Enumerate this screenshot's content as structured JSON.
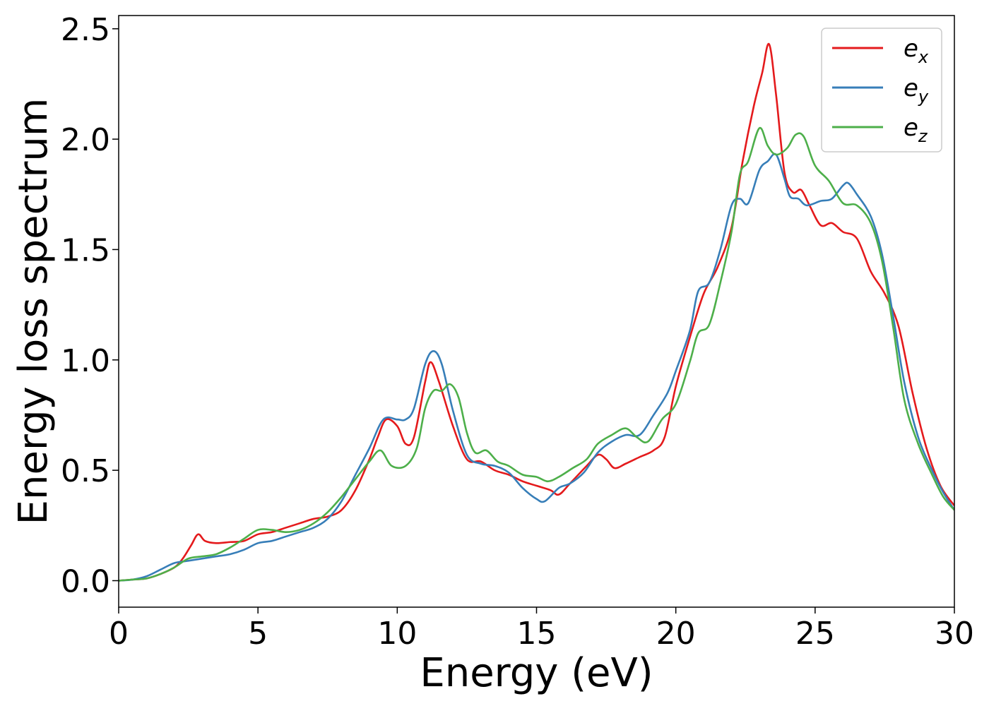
{
  "chart_data": {
    "type": "line",
    "title": "",
    "xlabel": "Energy (eV)",
    "ylabel": "Energy loss spectrum",
    "xlim": [
      0,
      30
    ],
    "ylim": [
      -0.12,
      2.56
    ],
    "xticks": [
      0,
      5,
      10,
      15,
      20,
      25,
      30
    ],
    "yticks": [
      0.0,
      0.5,
      1.0,
      1.5,
      2.0,
      2.5
    ],
    "xtick_labels": [
      "0",
      "5",
      "10",
      "15",
      "20",
      "25",
      "30"
    ],
    "ytick_labels": [
      "0.0",
      "0.5",
      "1.0",
      "1.5",
      "2.0",
      "2.5"
    ],
    "grid": false,
    "legend_position": "top-right",
    "series": [
      {
        "name": "e",
        "subscript": "x",
        "color": "#e41a1c",
        "points": [
          [
            0,
            0
          ],
          [
            0.5,
            0.005
          ],
          [
            1,
            0.01
          ],
          [
            1.5,
            0.03
          ],
          [
            2,
            0.06
          ],
          [
            2.3,
            0.1
          ],
          [
            2.6,
            0.16
          ],
          [
            2.85,
            0.21
          ],
          [
            3.1,
            0.18
          ],
          [
            3.5,
            0.17
          ],
          [
            4,
            0.175
          ],
          [
            4.5,
            0.18
          ],
          [
            5,
            0.21
          ],
          [
            5.5,
            0.22
          ],
          [
            6,
            0.24
          ],
          [
            6.5,
            0.26
          ],
          [
            7,
            0.28
          ],
          [
            7.5,
            0.29
          ],
          [
            8,
            0.32
          ],
          [
            8.5,
            0.41
          ],
          [
            9,
            0.55
          ],
          [
            9.3,
            0.65
          ],
          [
            9.6,
            0.73
          ],
          [
            10,
            0.7
          ],
          [
            10.3,
            0.62
          ],
          [
            10.6,
            0.65
          ],
          [
            11,
            0.9
          ],
          [
            11.2,
            0.99
          ],
          [
            11.5,
            0.9
          ],
          [
            12,
            0.7
          ],
          [
            12.5,
            0.55
          ],
          [
            13,
            0.54
          ],
          [
            13.5,
            0.5
          ],
          [
            14,
            0.48
          ],
          [
            14.5,
            0.45
          ],
          [
            15,
            0.43
          ],
          [
            15.5,
            0.41
          ],
          [
            15.8,
            0.39
          ],
          [
            16.2,
            0.44
          ],
          [
            16.8,
            0.52
          ],
          [
            17.2,
            0.57
          ],
          [
            17.5,
            0.55
          ],
          [
            17.8,
            0.51
          ],
          [
            18.2,
            0.53
          ],
          [
            18.7,
            0.56
          ],
          [
            19.2,
            0.59
          ],
          [
            19.6,
            0.65
          ],
          [
            20,
            0.88
          ],
          [
            20.5,
            1.1
          ],
          [
            21,
            1.3
          ],
          [
            21.5,
            1.42
          ],
          [
            22,
            1.6
          ],
          [
            22.4,
            1.9
          ],
          [
            22.8,
            2.15
          ],
          [
            23.1,
            2.3
          ],
          [
            23.35,
            2.43
          ],
          [
            23.6,
            2.2
          ],
          [
            23.9,
            1.85
          ],
          [
            24.2,
            1.76
          ],
          [
            24.5,
            1.77
          ],
          [
            24.8,
            1.7
          ],
          [
            25.2,
            1.61
          ],
          [
            25.6,
            1.62
          ],
          [
            26,
            1.58
          ],
          [
            26.5,
            1.55
          ],
          [
            27,
            1.4
          ],
          [
            27.5,
            1.3
          ],
          [
            28,
            1.15
          ],
          [
            28.5,
            0.85
          ],
          [
            29,
            0.6
          ],
          [
            29.5,
            0.43
          ],
          [
            30,
            0.34
          ]
        ]
      },
      {
        "name": "e",
        "subscript": "y",
        "color": "#377eb8",
        "points": [
          [
            0,
            0
          ],
          [
            0.5,
            0.005
          ],
          [
            1,
            0.02
          ],
          [
            1.5,
            0.05
          ],
          [
            2,
            0.08
          ],
          [
            2.5,
            0.09
          ],
          [
            3,
            0.1
          ],
          [
            3.5,
            0.11
          ],
          [
            4,
            0.12
          ],
          [
            4.5,
            0.14
          ],
          [
            5,
            0.17
          ],
          [
            5.5,
            0.18
          ],
          [
            6,
            0.2
          ],
          [
            6.5,
            0.22
          ],
          [
            7,
            0.24
          ],
          [
            7.5,
            0.28
          ],
          [
            8,
            0.36
          ],
          [
            8.5,
            0.48
          ],
          [
            9,
            0.6
          ],
          [
            9.5,
            0.73
          ],
          [
            10,
            0.73
          ],
          [
            10.3,
            0.73
          ],
          [
            10.6,
            0.78
          ],
          [
            11,
            0.98
          ],
          [
            11.3,
            1.04
          ],
          [
            11.6,
            0.98
          ],
          [
            12,
            0.77
          ],
          [
            12.5,
            0.57
          ],
          [
            13,
            0.53
          ],
          [
            13.5,
            0.52
          ],
          [
            14,
            0.49
          ],
          [
            14.5,
            0.42
          ],
          [
            15,
            0.37
          ],
          [
            15.3,
            0.36
          ],
          [
            15.8,
            0.42
          ],
          [
            16.2,
            0.44
          ],
          [
            16.7,
            0.49
          ],
          [
            17.2,
            0.58
          ],
          [
            17.7,
            0.63
          ],
          [
            18.2,
            0.66
          ],
          [
            18.7,
            0.66
          ],
          [
            19.2,
            0.75
          ],
          [
            19.7,
            0.85
          ],
          [
            20,
            0.95
          ],
          [
            20.5,
            1.13
          ],
          [
            20.8,
            1.31
          ],
          [
            21.2,
            1.35
          ],
          [
            21.6,
            1.5
          ],
          [
            22,
            1.7
          ],
          [
            22.3,
            1.73
          ],
          [
            22.6,
            1.71
          ],
          [
            23,
            1.86
          ],
          [
            23.3,
            1.9
          ],
          [
            23.6,
            1.93
          ],
          [
            23.9,
            1.82
          ],
          [
            24.1,
            1.74
          ],
          [
            24.4,
            1.73
          ],
          [
            24.7,
            1.7
          ],
          [
            25.2,
            1.72
          ],
          [
            25.6,
            1.73
          ],
          [
            26,
            1.79
          ],
          [
            26.2,
            1.8
          ],
          [
            26.5,
            1.75
          ],
          [
            27,
            1.65
          ],
          [
            27.4,
            1.48
          ],
          [
            27.8,
            1.2
          ],
          [
            28.2,
            0.9
          ],
          [
            28.7,
            0.65
          ],
          [
            29.2,
            0.5
          ],
          [
            29.6,
            0.4
          ],
          [
            30,
            0.32
          ]
        ]
      },
      {
        "name": "e",
        "subscript": "z",
        "color": "#4daf4a",
        "points": [
          [
            0,
            0
          ],
          [
            0.5,
            0.005
          ],
          [
            1,
            0.01
          ],
          [
            1.5,
            0.03
          ],
          [
            2,
            0.06
          ],
          [
            2.5,
            0.1
          ],
          [
            3,
            0.11
          ],
          [
            3.5,
            0.12
          ],
          [
            4,
            0.15
          ],
          [
            4.5,
            0.19
          ],
          [
            5,
            0.23
          ],
          [
            5.5,
            0.23
          ],
          [
            6,
            0.22
          ],
          [
            6.5,
            0.23
          ],
          [
            7,
            0.26
          ],
          [
            7.5,
            0.31
          ],
          [
            8,
            0.38
          ],
          [
            8.5,
            0.46
          ],
          [
            9,
            0.54
          ],
          [
            9.4,
            0.59
          ],
          [
            9.8,
            0.52
          ],
          [
            10.3,
            0.52
          ],
          [
            10.7,
            0.6
          ],
          [
            11,
            0.78
          ],
          [
            11.3,
            0.86
          ],
          [
            11.6,
            0.86
          ],
          [
            11.9,
            0.89
          ],
          [
            12.2,
            0.83
          ],
          [
            12.5,
            0.67
          ],
          [
            12.8,
            0.58
          ],
          [
            13.2,
            0.59
          ],
          [
            13.6,
            0.54
          ],
          [
            14,
            0.52
          ],
          [
            14.5,
            0.48
          ],
          [
            15,
            0.47
          ],
          [
            15.4,
            0.45
          ],
          [
            15.8,
            0.47
          ],
          [
            16.3,
            0.51
          ],
          [
            16.8,
            0.55
          ],
          [
            17.2,
            0.62
          ],
          [
            17.7,
            0.66
          ],
          [
            18.2,
            0.69
          ],
          [
            18.6,
            0.65
          ],
          [
            19,
            0.63
          ],
          [
            19.5,
            0.73
          ],
          [
            20,
            0.8
          ],
          [
            20.5,
            0.99
          ],
          [
            20.8,
            1.12
          ],
          [
            21.2,
            1.16
          ],
          [
            21.6,
            1.35
          ],
          [
            22,
            1.58
          ],
          [
            22.3,
            1.84
          ],
          [
            22.6,
            1.9
          ],
          [
            23,
            2.05
          ],
          [
            23.3,
            1.97
          ],
          [
            23.6,
            1.93
          ],
          [
            24,
            1.96
          ],
          [
            24.3,
            2.02
          ],
          [
            24.6,
            2.01
          ],
          [
            25,
            1.88
          ],
          [
            25.5,
            1.81
          ],
          [
            26,
            1.71
          ],
          [
            26.5,
            1.7
          ],
          [
            27,
            1.62
          ],
          [
            27.4,
            1.45
          ],
          [
            27.8,
            1.15
          ],
          [
            28.2,
            0.82
          ],
          [
            28.7,
            0.62
          ],
          [
            29.2,
            0.48
          ],
          [
            29.6,
            0.38
          ],
          [
            30,
            0.32
          ]
        ]
      }
    ]
  }
}
